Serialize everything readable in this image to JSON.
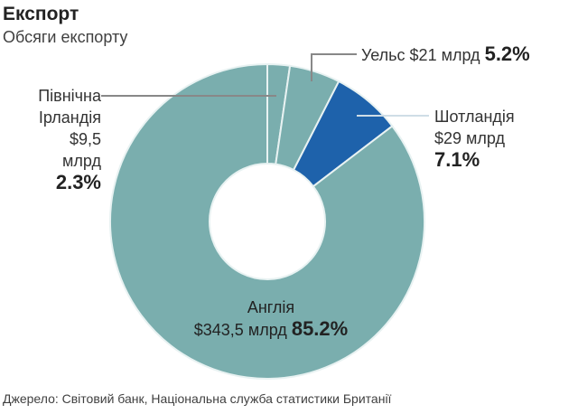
{
  "chart_data": {
    "type": "pie",
    "title": "Експорт",
    "subtitle": "Обсяги експорту",
    "source": "Джерело: Світовий банк, Національна служба статистики Британії",
    "slices": [
      {
        "name": "Північна Ірландія",
        "name_line1": "Північна",
        "name_line2": "Ірландія",
        "amount": "$9,5 млрд",
        "value": 2.3,
        "pct_label": "2.3%",
        "color": "#7aaeae"
      },
      {
        "name": "Уельс",
        "amount": "$21 млрд",
        "value": 5.2,
        "pct_label": "5.2%",
        "color": "#7aaeae"
      },
      {
        "name": "Шотландія",
        "amount": "$29 млрд",
        "value": 7.1,
        "pct_label": "7.1%",
        "color": "#1e62ab"
      },
      {
        "name": "Англія",
        "amount": "$343,5 млрд",
        "value": 85.2,
        "pct_label": "85.2%",
        "color": "#7aaeae"
      }
    ]
  }
}
